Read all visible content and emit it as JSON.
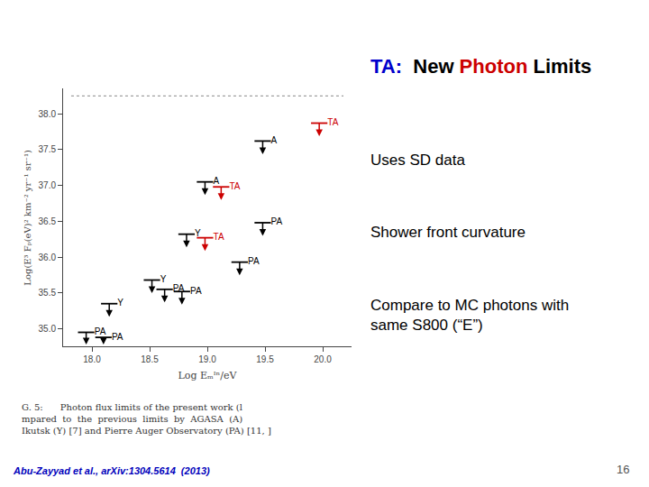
{
  "chart_data": {
    "type": "scatter",
    "marker": "upper_limit",
    "title": [
      {
        "text": "TA:",
        "color": "#0000cc"
      },
      {
        "text": "  New ",
        "color": "#000000"
      },
      {
        "text": "Photon",
        "color": "#cc0000"
      },
      {
        "text": " Limits",
        "color": "#000000"
      }
    ],
    "x_label": "Log Eₘᴵⁿ/eV",
    "y_label": "Log(E³ Fₚ(eV)² km⁻² yr⁻¹ sr⁻¹)",
    "xlim": [
      17.75,
      20.25
    ],
    "ylim": [
      34.75,
      38.35
    ],
    "xticks": [
      {
        "value": 18,
        "label": "18.0"
      },
      18.5,
      {
        "value": 19,
        "label": "19.0"
      },
      19.5,
      {
        "value": 20,
        "label": "20.0"
      }
    ],
    "yticks": [
      {
        "value": 35,
        "label": "35.0"
      },
      35.5,
      {
        "value": 36,
        "label": "36.0"
      },
      36.5,
      {
        "value": 37,
        "label": "37.0"
      },
      37.5,
      {
        "value": 38,
        "label": "38.0"
      }
    ],
    "grid": false,
    "series": [
      {
        "name": "TA",
        "color": "#cc0000",
        "x": [
          19.97,
          19.12,
          18.98
        ],
        "values": [
          37.87,
          36.98,
          36.27
        ]
      },
      {
        "name": "A",
        "color": "#000000",
        "x": [
          19.48,
          18.98
        ],
        "values": [
          37.62,
          37.05
        ]
      },
      {
        "name": "PA",
        "color": "#000000",
        "x": [
          19.48,
          19.28,
          18.63,
          18.78,
          17.95,
          18.1
        ],
        "values": [
          36.48,
          35.93,
          35.55,
          35.52,
          34.95,
          34.88
        ]
      },
      {
        "name": "Y",
        "color": "#000000",
        "x": [
          18.82,
          18.52,
          18.15
        ],
        "values": [
          36.32,
          35.68,
          35.35
        ]
      }
    ],
    "reference_line": {
      "x": [
        17.82,
        20.18
      ],
      "y": 38.25,
      "color": "#888888",
      "line_style": "dotted"
    },
    "caption": {
      "color": "#333333",
      "lines": [
        "G. 5:      Photon flux limits of the present work (l",
        "mpared  to  the  previous  limits  by  AGASA  (A)",
        "Ikutsk (Y) [7] and Pierre Auger Observatory (PA) [11, ]"
      ]
    },
    "bullets": {
      "color": "#000000",
      "items": [
        "Uses SD data",
        "Shower front curvature",
        "Compare to MC photons with\nsame S800 (“E”)"
      ]
    },
    "citation": {
      "text": "Abu-Zayyad et al., arXiv:1304.5614  (2013)",
      "color": "#0000bb"
    },
    "slide_number": {
      "text": "16",
      "color": "#555555"
    }
  }
}
